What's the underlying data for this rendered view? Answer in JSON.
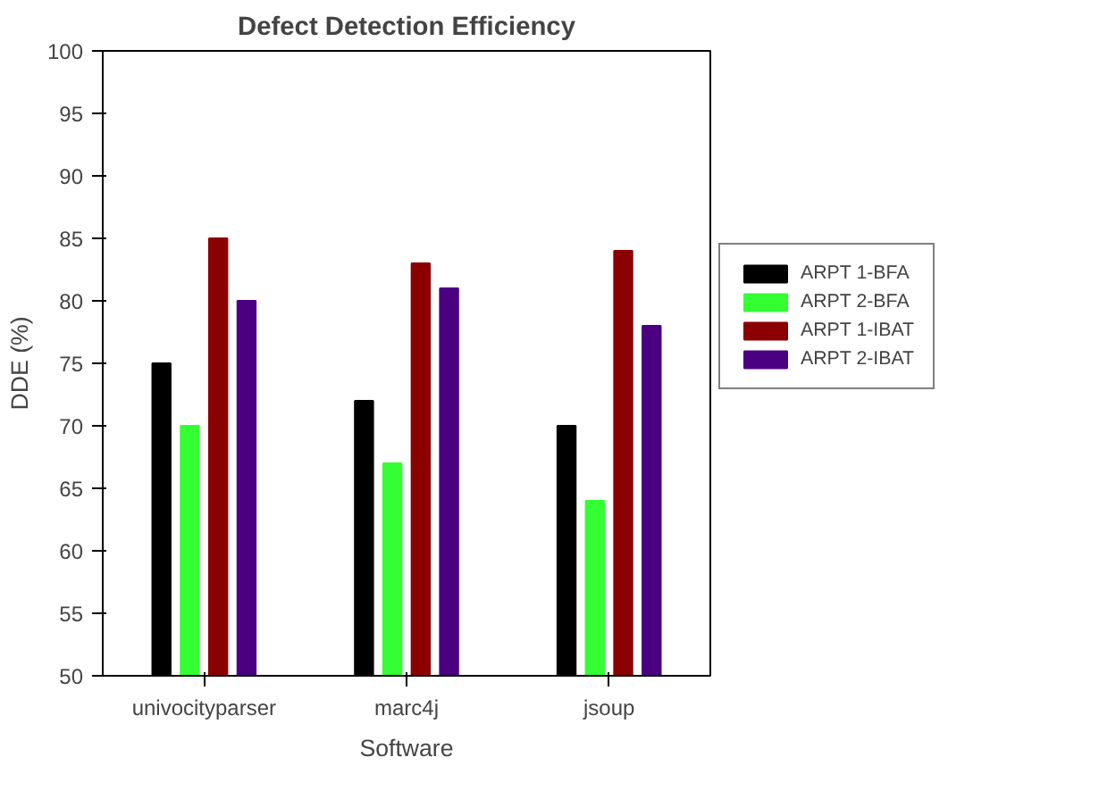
{
  "chart_data": {
    "type": "bar",
    "title": "Defect Detection Efficiency",
    "xlabel": "Software",
    "ylabel": "DDE (%)",
    "categories": [
      "univocityparser",
      "marc4j",
      "jsoup"
    ],
    "series": [
      {
        "name": "ARPT 1-BFA",
        "color": "#000000",
        "values": [
          75,
          72,
          70
        ]
      },
      {
        "name": "ARPT 2-BFA",
        "color": "#33ff33",
        "values": [
          70,
          67,
          64
        ]
      },
      {
        "name": "ARPT 1-IBAT",
        "color": "#8b0000",
        "values": [
          85,
          83,
          84
        ]
      },
      {
        "name": "ARPT 2-IBAT",
        "color": "#4b0082",
        "values": [
          80,
          81,
          78
        ]
      }
    ],
    "ylim": [
      50,
      100
    ],
    "yticks": [
      50,
      55,
      60,
      65,
      70,
      75,
      80,
      85,
      90,
      95,
      100
    ],
    "grid": false,
    "legend": "right"
  }
}
